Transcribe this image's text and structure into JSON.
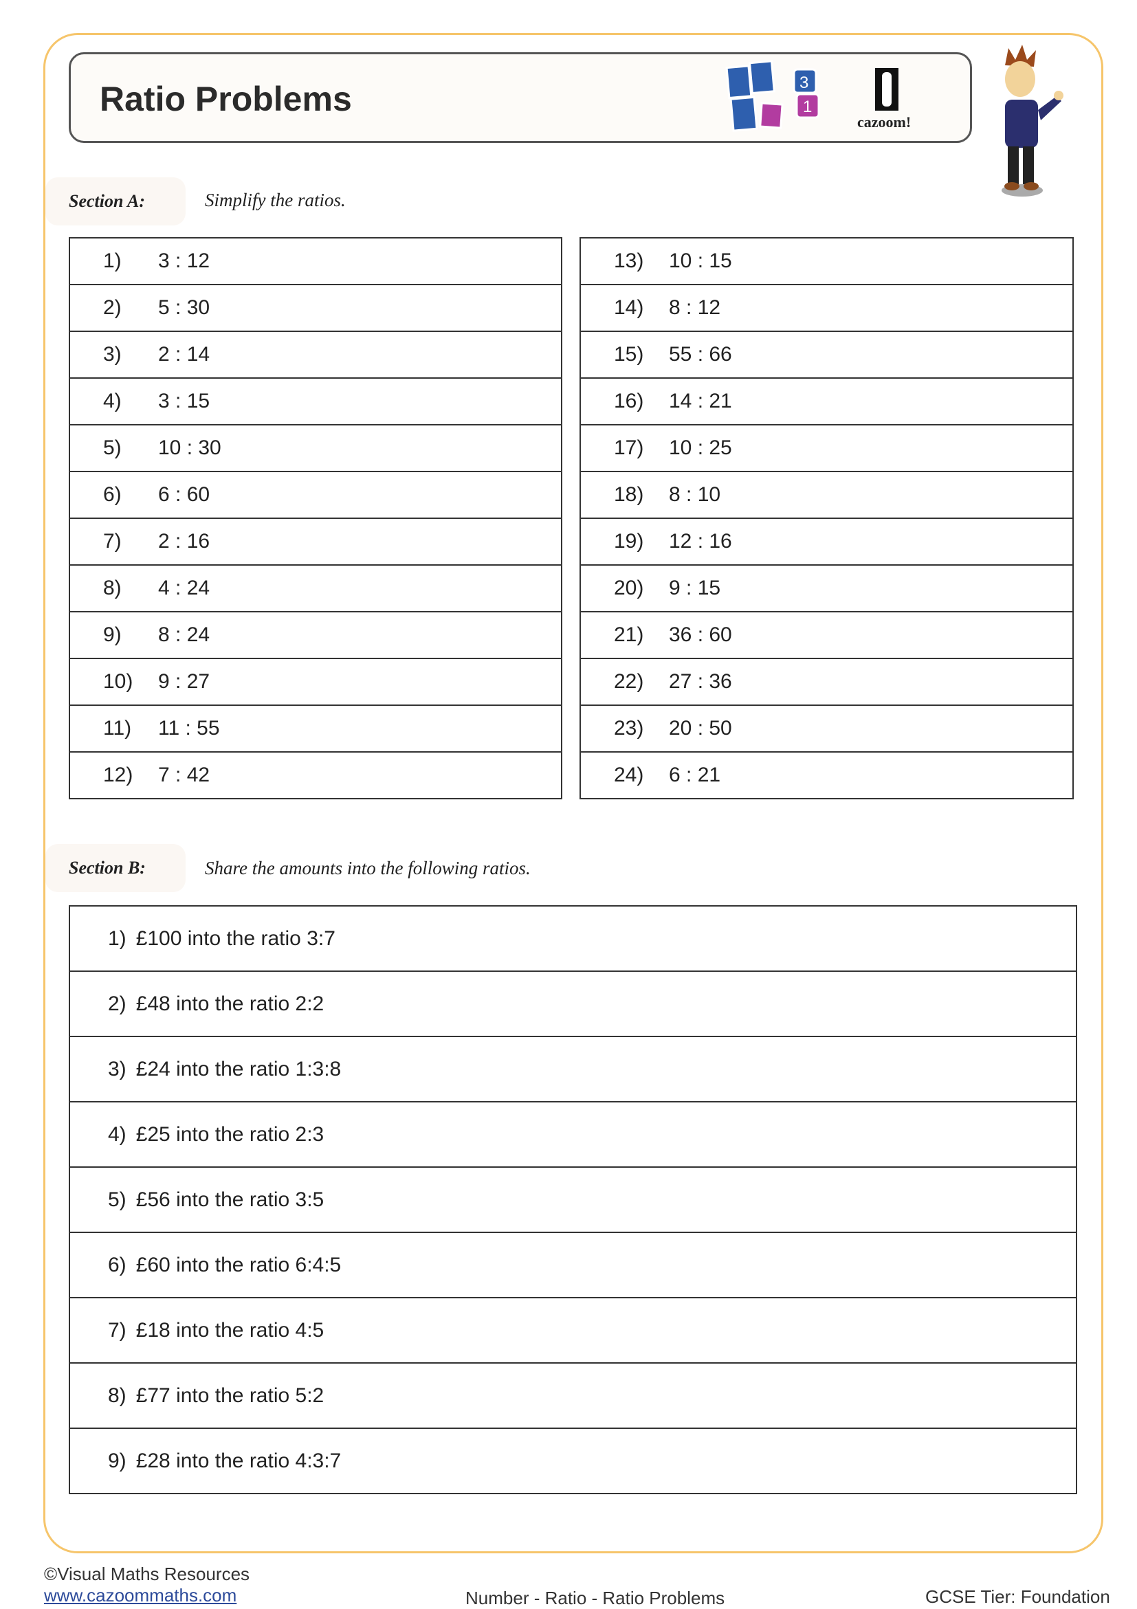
{
  "title": "Ratio Problems",
  "logo": {
    "text": "cazoom!",
    "tiles": [
      "3",
      "1"
    ],
    "colors": {
      "blue": "#2e5fae",
      "magenta": "#b23ca0"
    }
  },
  "section_a": {
    "label": "Section A:",
    "instruction": "Simplify the ratios.",
    "left": [
      {
        "n": "1)",
        "q": "3 : 12"
      },
      {
        "n": "2)",
        "q": "5 : 30"
      },
      {
        "n": "3)",
        "q": "2 : 14"
      },
      {
        "n": "4)",
        "q": "3 : 15"
      },
      {
        "n": "5)",
        "q": "10 : 30"
      },
      {
        "n": "6)",
        "q": "6 : 60"
      },
      {
        "n": "7)",
        "q": "2 : 16"
      },
      {
        "n": "8)",
        "q": "4 : 24"
      },
      {
        "n": "9)",
        "q": "8 : 24"
      },
      {
        "n": "10)",
        "q": "9 : 27"
      },
      {
        "n": "11)",
        "q": "11 : 55"
      },
      {
        "n": "12)",
        "q": "7 : 42"
      }
    ],
    "right": [
      {
        "n": "13)",
        "q": "10 : 15"
      },
      {
        "n": "14)",
        "q": "8 : 12"
      },
      {
        "n": "15)",
        "q": "55 : 66"
      },
      {
        "n": "16)",
        "q": "14 : 21"
      },
      {
        "n": "17)",
        "q": "10 : 25"
      },
      {
        "n": "18)",
        "q": "8 : 10"
      },
      {
        "n": "19)",
        "q": "12 : 16"
      },
      {
        "n": "20)",
        "q": "9 : 15"
      },
      {
        "n": "21)",
        "q": "36 : 60"
      },
      {
        "n": "22)",
        "q": "27 : 36"
      },
      {
        "n": "23)",
        "q": "20 : 50"
      },
      {
        "n": "24)",
        "q": "6 : 21"
      }
    ]
  },
  "section_b": {
    "label": "Section B:",
    "instruction": "Share the amounts into the following ratios.",
    "items": [
      {
        "n": "1)",
        "q": "£100 into the ratio 3:7"
      },
      {
        "n": "2)",
        "q": "£48 into the ratio 2:2"
      },
      {
        "n": "3)",
        "q": "£24 into the ratio 1:3:8"
      },
      {
        "n": "4)",
        "q": "£25 into the ratio 2:3"
      },
      {
        "n": "5)",
        "q": "£56 into the ratio 3:5"
      },
      {
        "n": "6)",
        "q": "£60 into the ratio 6:4:5"
      },
      {
        "n": "7)",
        "q": "£18 into the ratio 4:5"
      },
      {
        "n": "8)",
        "q": "£77 into the ratio 5:2"
      },
      {
        "n": "9)",
        "q": "£28 into the ratio 4:3:7"
      }
    ]
  },
  "footer": {
    "copyright": "©Visual Maths Resources",
    "url": "www.cazoommaths.com",
    "topic": "Number - Ratio - Ratio Problems",
    "tier": "GCSE Tier: Foundation"
  }
}
